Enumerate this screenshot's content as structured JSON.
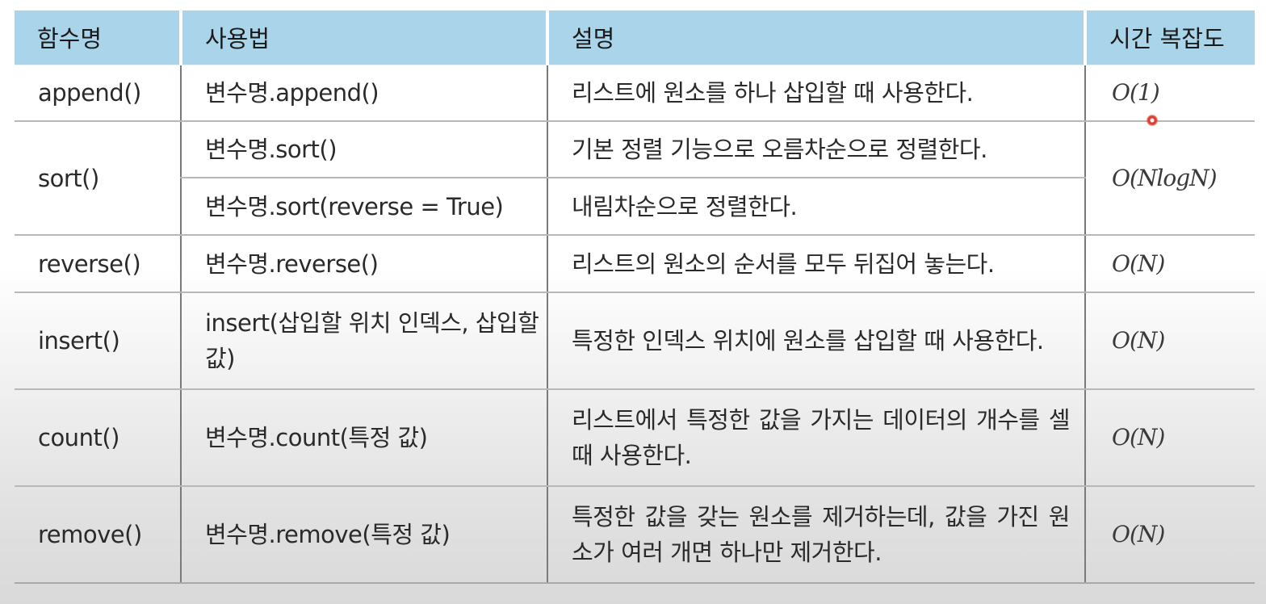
{
  "header": {
    "col1": "함수명",
    "col2": "사용법",
    "col3": "설명",
    "col4": "시간 복잡도"
  },
  "rows": [
    {
      "function": "append()",
      "usage": "변수명.append()",
      "description": "리스트에 원소를 하나 삽입할 때 사용한다.",
      "complexity": "O(1)"
    },
    {
      "function": "sort()",
      "usage": "변수명.sort()",
      "description": "기본 정렬 기능으로 오름차순으로 정렬한다.",
      "complexity": "O(NlogN)"
    },
    {
      "usage": "변수명.sort(reverse = True)",
      "description": "내림차순으로 정렬한다."
    },
    {
      "function": "reverse()",
      "usage": "변수명.reverse()",
      "description": "리스트의 원소의 순서를 모두 뒤집어 놓는다.",
      "complexity": "O(N)"
    },
    {
      "function": "insert()",
      "usage": "insert(삽입할 위치 인덱스, 삽입할 값)",
      "description": "특정한 인덱스 위치에 원소를 삽입할 때 사용한다.",
      "complexity": "O(N)"
    },
    {
      "function": "count()",
      "usage": "변수명.count(특정 값)",
      "description": "리스트에서 특정한 값을 가지는 데이터의 개수를 셀 때 사용한다.",
      "complexity": "O(N)"
    },
    {
      "function": "remove()",
      "usage": "변수명.remove(특정 값)",
      "description": "특정한 값을 갖는 원소를 제거하는데, 값을 가진 원소가 여러 개면 하나만 제거한다.",
      "complexity": "O(N)"
    }
  ],
  "colors": {
    "header_bg": "#a9d4ea",
    "cursor": "#e23b2e"
  }
}
